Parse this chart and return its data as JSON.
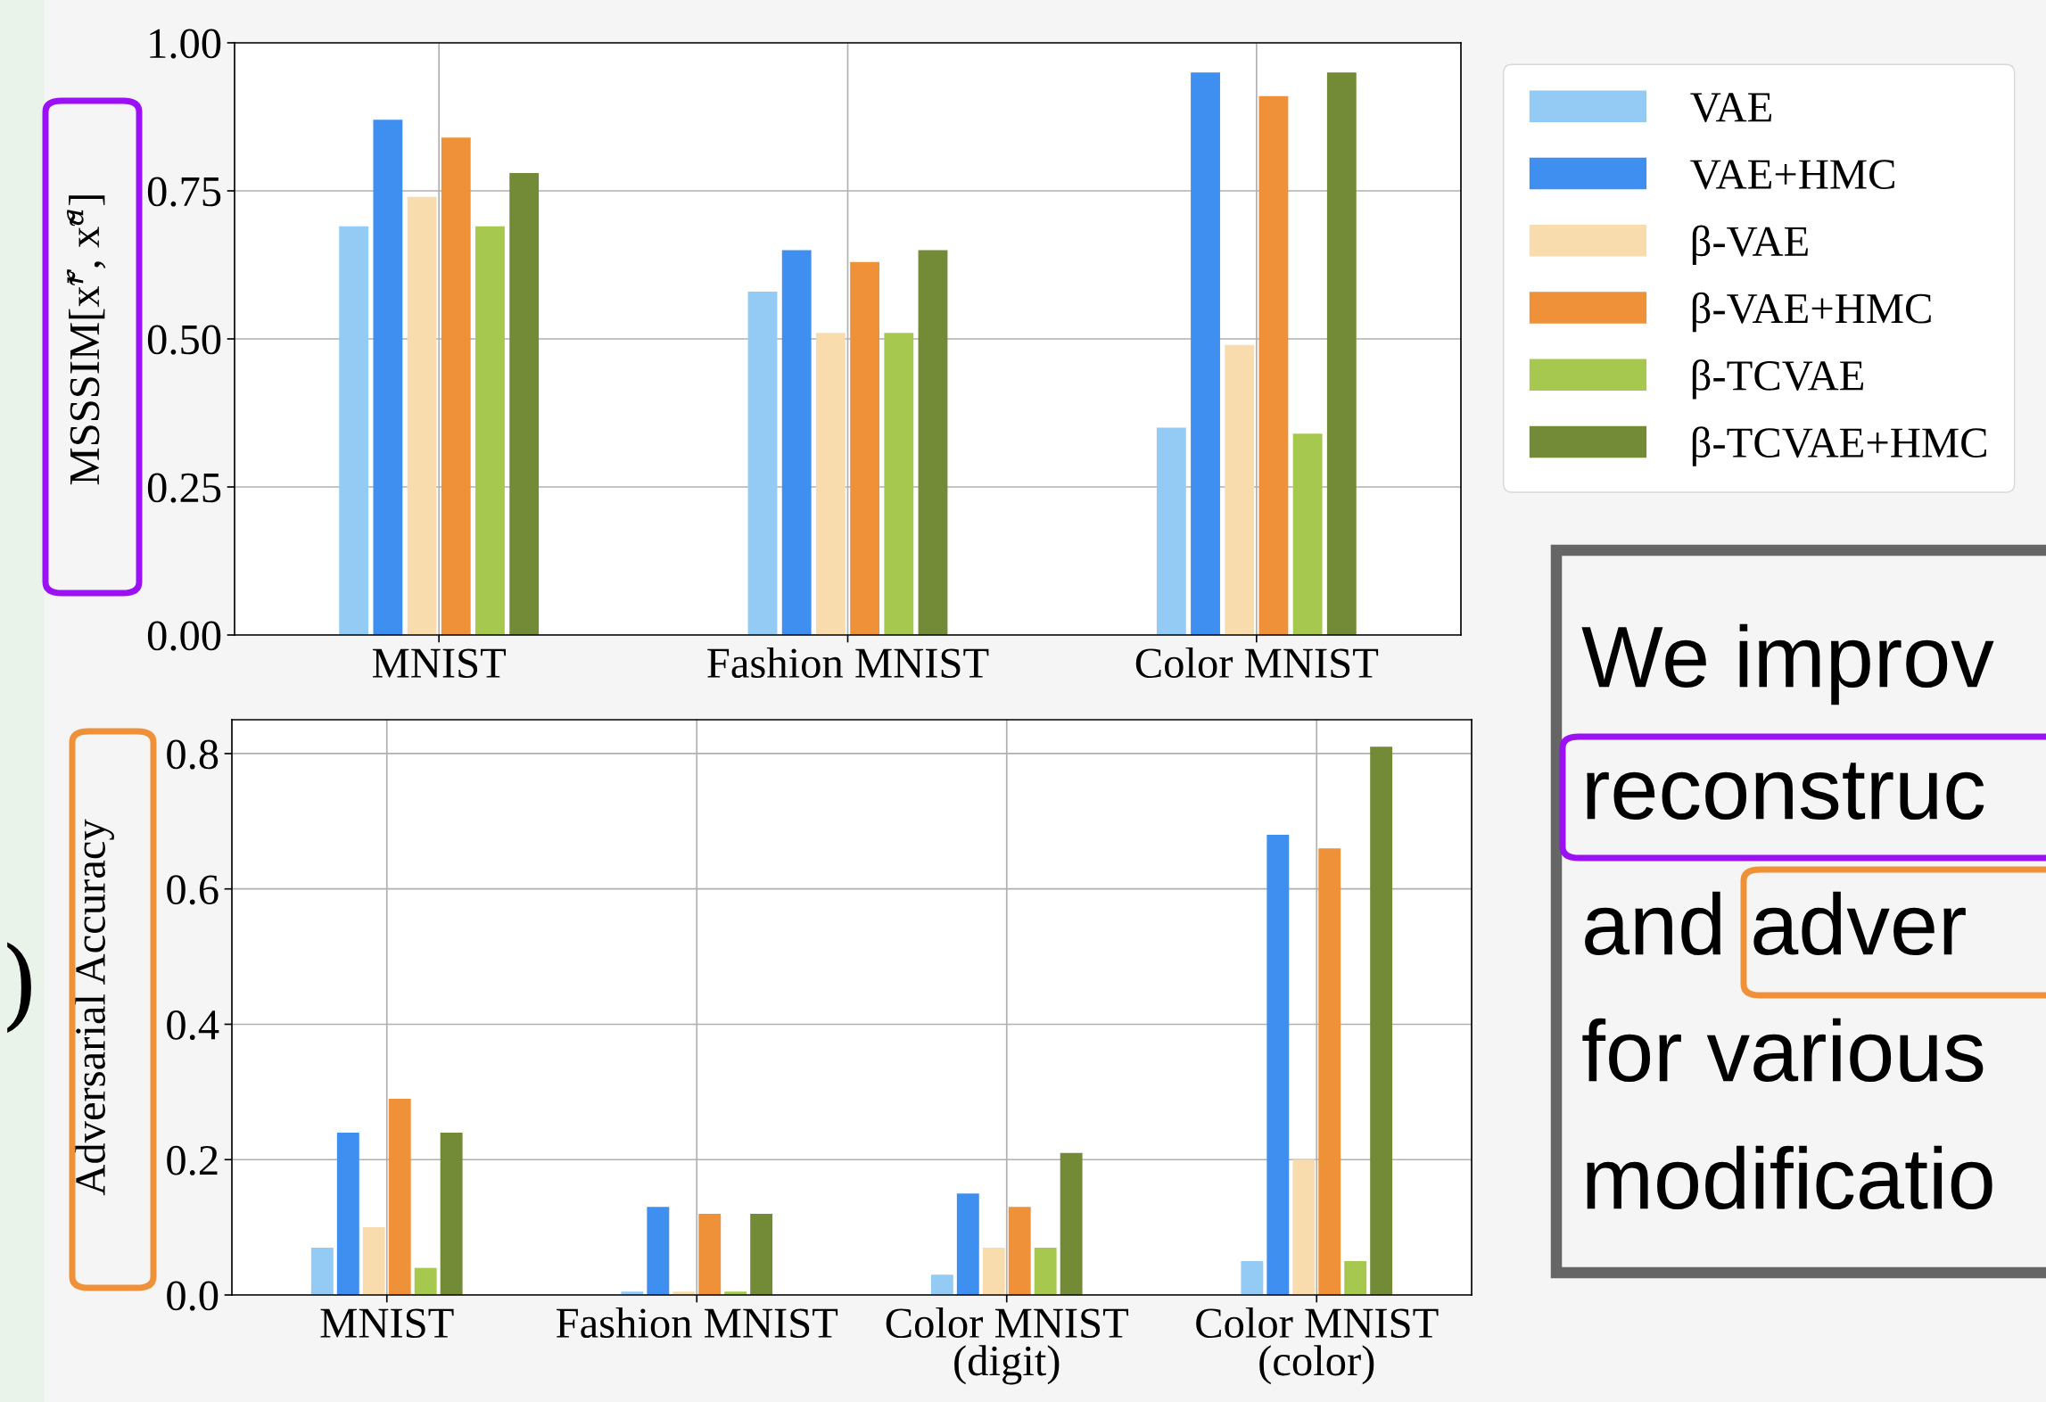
{
  "chart_data": [
    {
      "type": "bar",
      "ylabel": "MSSSIM[x̃$^{r}$, x̃$^{a}$]",
      "categories": [
        "MNIST",
        "Fashion MNIST",
        "Color MNIST"
      ],
      "series": [
        {
          "name": "VAE",
          "color": "#94cbf5",
          "values": [
            0.69,
            0.58,
            0.35
          ]
        },
        {
          "name": "VAE+HMC",
          "color": "#3f8ff0",
          "values": [
            0.87,
            0.65,
            0.95
          ]
        },
        {
          "name": "β-VAE",
          "color": "#f8dcae",
          "values": [
            0.74,
            0.51,
            0.49
          ]
        },
        {
          "name": "β-VAE+HMC",
          "color": "#ef9138",
          "values": [
            0.84,
            0.63,
            0.91
          ]
        },
        {
          "name": "β-TCVAE",
          "color": "#a6c84e",
          "values": [
            0.69,
            0.51,
            0.34
          ]
        },
        {
          "name": "β-TCVAE+HMC",
          "color": "#738b37",
          "values": [
            0.78,
            0.65,
            0.95
          ]
        }
      ],
      "ylim": [
        0,
        1.0
      ],
      "yticks": [
        {
          "value": 0,
          "label": "0.00"
        },
        {
          "value": 0.25,
          "label": "0.25"
        },
        {
          "value": 0.5,
          "label": "0.50"
        },
        {
          "value": 0.75,
          "label": "0.75"
        },
        {
          "value": 1.0,
          "label": "1.00"
        }
      ],
      "grid": true,
      "legend": "right"
    },
    {
      "type": "bar",
      "ylabel": "Adversarial Accuracy",
      "categories": [
        "MNIST",
        "Fashion MNIST",
        "Color MNIST\n(digit)",
        "Color MNIST\n(color)"
      ],
      "series": [
        {
          "color": "#94cbf5",
          "values": [
            0.07,
            0.005,
            0.03,
            0.05
          ]
        },
        {
          "color": "#3f8ff0",
          "values": [
            0.24,
            0.13,
            0.15,
            0.68
          ]
        },
        {
          "color": "#f8dcae",
          "values": [
            0.1,
            0.005,
            0.07,
            0.2
          ]
        },
        {
          "color": "#ef9138",
          "values": [
            0.29,
            0.12,
            0.13,
            0.66
          ]
        },
        {
          "color": "#a6c84e",
          "values": [
            0.04,
            0.005,
            0.07,
            0.05
          ]
        },
        {
          "color": "#738b37",
          "values": [
            0.24,
            0.12,
            0.21,
            0.81
          ]
        }
      ],
      "ylim": [
        0,
        0.85
      ],
      "yticks": [
        {
          "value": 0,
          "label": "0.0"
        },
        {
          "value": 0.2,
          "label": "0.2"
        },
        {
          "value": 0.4,
          "label": "0.4"
        },
        {
          "value": 0.6,
          "label": "0.6"
        },
        {
          "value": 0.8,
          "label": "0.8"
        }
      ],
      "grid": true,
      "annotations": [
        ")"
      ]
    },
    {
      "type": "other",
      "annotations": [
        "We improv",
        "reconstruc",
        "and adver",
        "for various",
        "modificatio"
      ]
    }
  ]
}
